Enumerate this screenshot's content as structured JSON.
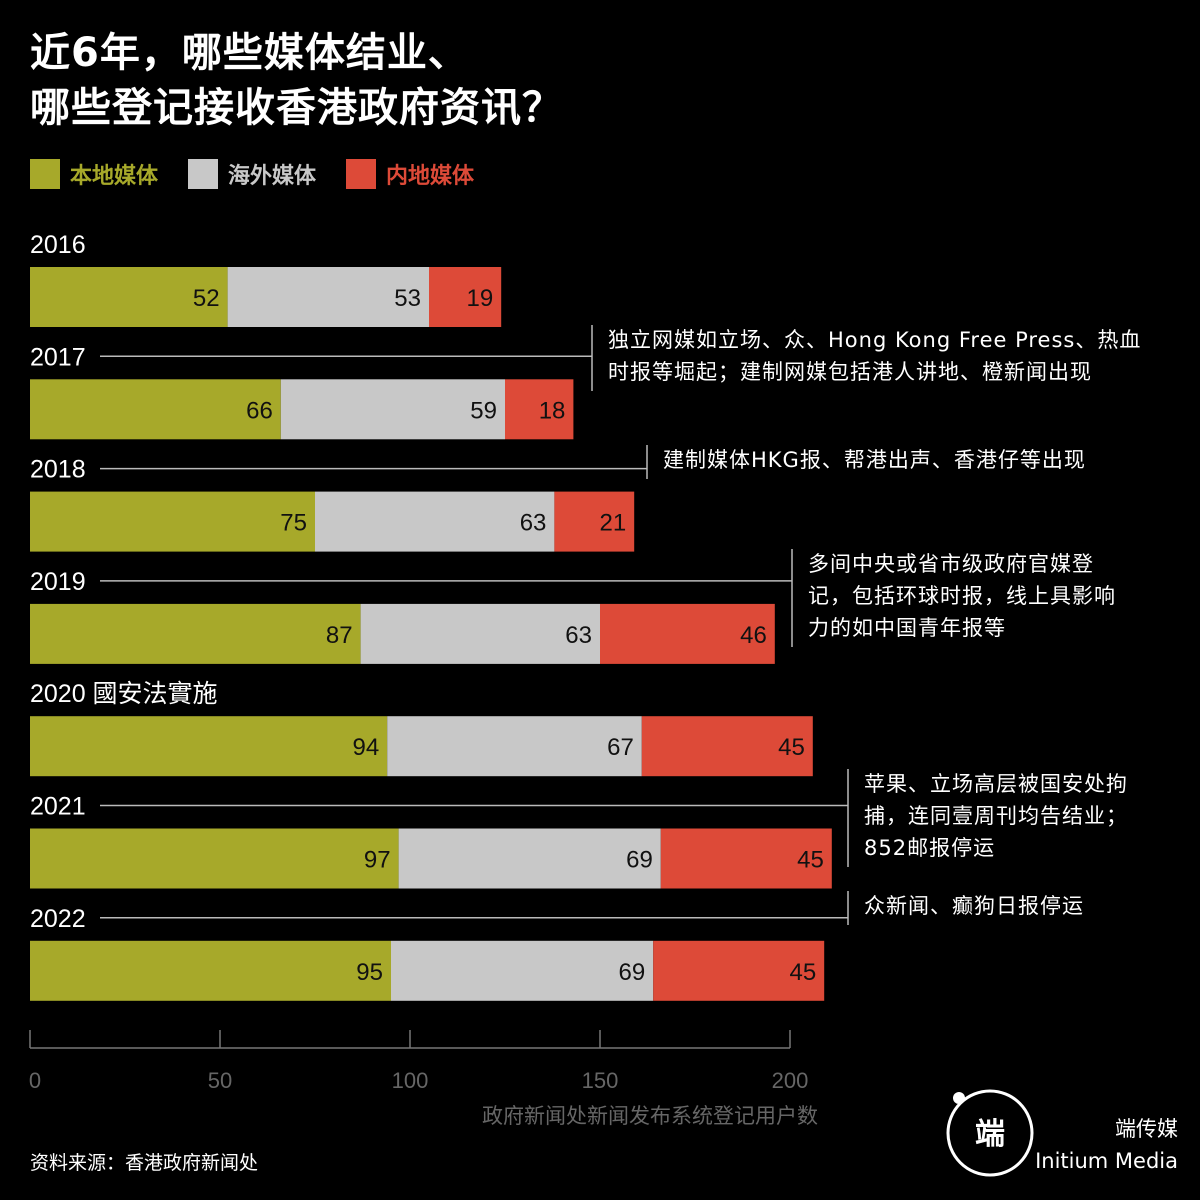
{
  "title": {
    "line1": "近6年，哪些媒体结业、",
    "line2": "哪些登记接收香港政府资讯？"
  },
  "legend": [
    {
      "label": "本地媒体",
      "color": "#a7a92a"
    },
    {
      "label": "海外媒体",
      "color": "#c8c8c8"
    },
    {
      "label": "内地媒体",
      "color": "#dd4a38"
    }
  ],
  "chart_data": {
    "type": "bar",
    "orientation": "horizontal",
    "stacked": true,
    "categories": [
      "2016",
      "2017",
      "2018",
      "2019",
      "2020",
      "2021",
      "2022"
    ],
    "category_labels": [
      "2016",
      "2017",
      "2018",
      "2019",
      "2020 國安法實施",
      "2021",
      "2022"
    ],
    "series": [
      {
        "name": "本地媒体",
        "color": "#a7a92a",
        "values": [
          52,
          66,
          75,
          87,
          94,
          97,
          95
        ]
      },
      {
        "name": "海外媒体",
        "color": "#c8c8c8",
        "values": [
          53,
          59,
          63,
          63,
          67,
          69,
          69
        ]
      },
      {
        "name": "内地媒体",
        "color": "#dd4a38",
        "values": [
          19,
          18,
          21,
          46,
          45,
          45,
          45
        ]
      }
    ],
    "xlim": [
      0,
      200
    ],
    "xticks": [
      0,
      50,
      100,
      150,
      200
    ],
    "xlabel": "政府新闻处新闻发布系统登记用户数",
    "grid": false,
    "legend_position": "top-left",
    "annotations": [
      {
        "year": "2017",
        "lines": [
          "独立网媒如立场、众、Hong Kong Free Press、热血",
          "时报等堀起；建制网媒包括港人讲地、橙新闻出现"
        ]
      },
      {
        "year": "2018",
        "lines": [
          "建制媒体HKG报、帮港出声、香港仔等出现"
        ]
      },
      {
        "year": "2019",
        "lines": [
          "多间中央或省市级政府官媒登",
          "记，包括环球时报，线上具影响",
          "力的如中国青年报等"
        ]
      },
      {
        "year": "2021",
        "lines": [
          "苹果、立场高层被国安处拘",
          "捕，连同壹周刊均告结业；",
          "852邮报停运"
        ]
      },
      {
        "year": "2022",
        "lines": [
          "众新闻、癫狗日报停运"
        ]
      }
    ]
  },
  "source": "资料来源：香港政府新闻处",
  "brand": {
    "logo_text": "端",
    "name_cn": "端传媒",
    "name_en": "Initium Media"
  }
}
